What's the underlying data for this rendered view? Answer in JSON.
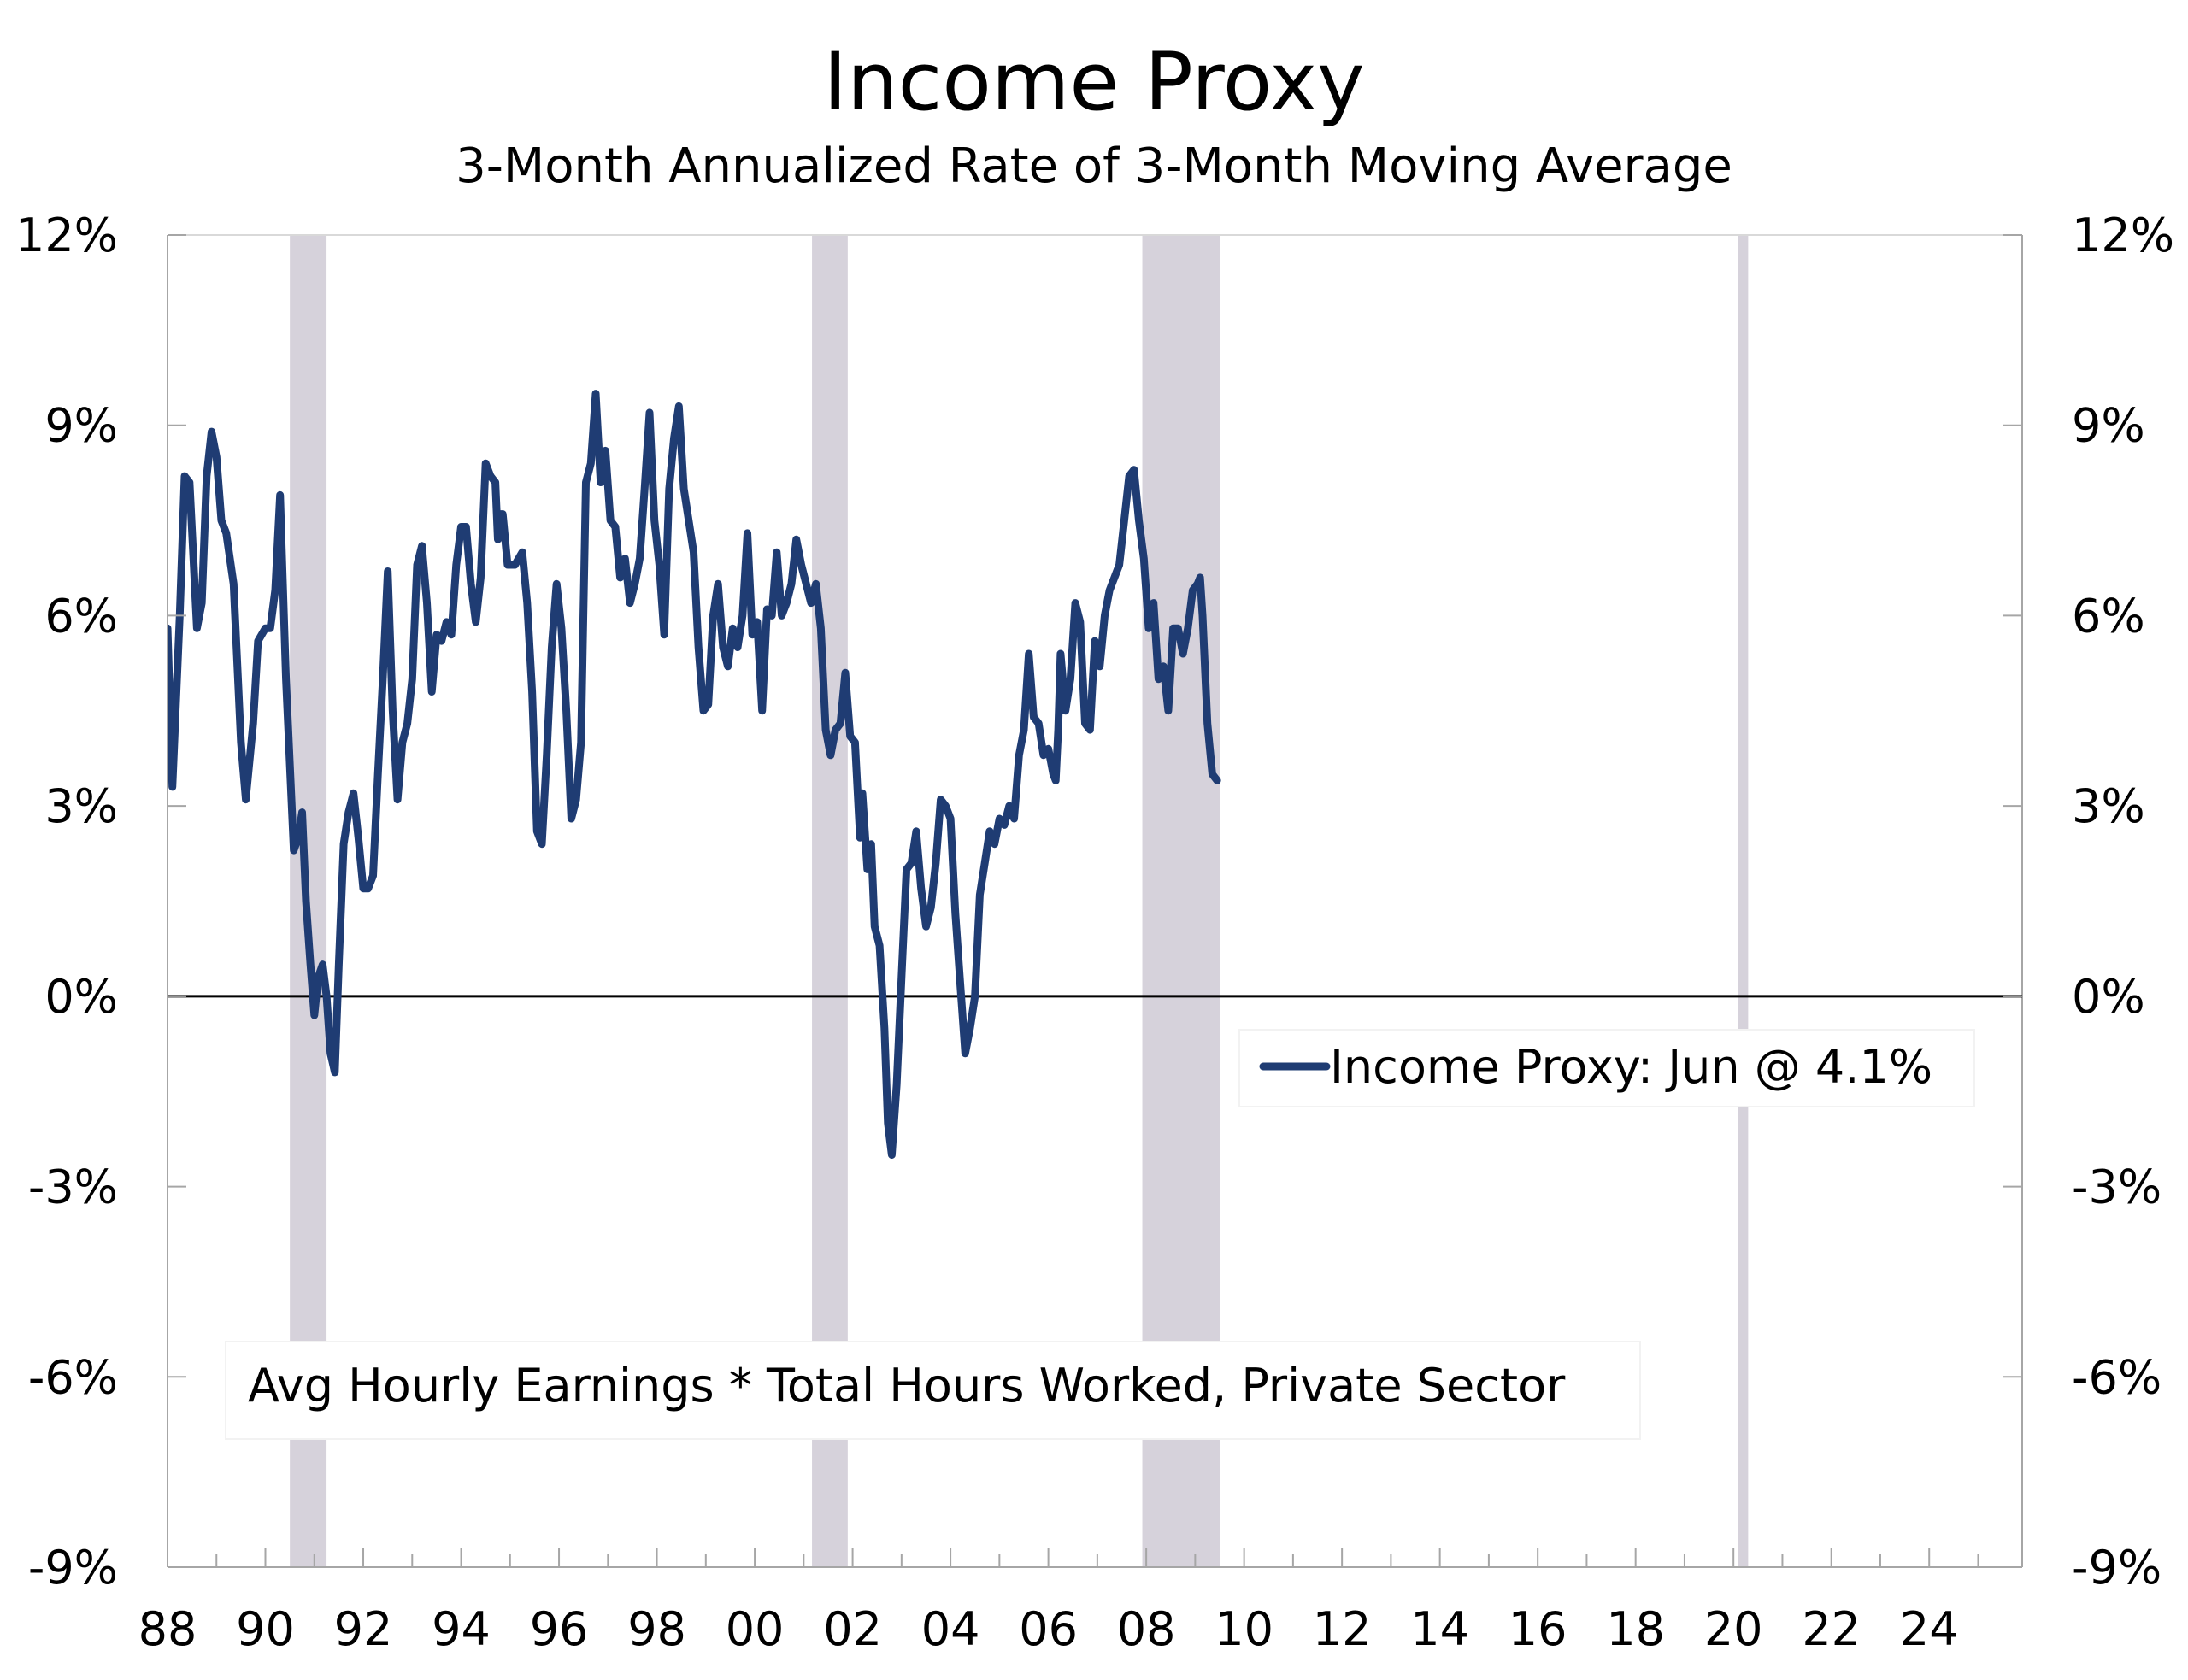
{
  "chart_data": {
    "type": "line",
    "title": "Income Proxy",
    "subtitle": "3-Month Annualized Rate of 3-Month Moving Average",
    "note": "Avg Hourly Earnings * Total Hours Worked, Private Sector",
    "xlim": [
      1988,
      2025.9
    ],
    "ylim": [
      -9,
      12
    ],
    "y_ticks": [
      {
        "value": 12,
        "label": "12%"
      },
      {
        "value": 9,
        "label": "9%"
      },
      {
        "value": 6,
        "label": "6%"
      },
      {
        "value": 3,
        "label": "3%"
      },
      {
        "value": 0,
        "label": "0%"
      },
      {
        "value": -3,
        "label": "-3%"
      },
      {
        "value": -6,
        "label": "-6%"
      },
      {
        "value": -9,
        "label": "-9%"
      }
    ],
    "x_ticks": [
      {
        "value": 1988,
        "label": "88"
      },
      {
        "value": 1990,
        "label": "90"
      },
      {
        "value": 1992,
        "label": "92"
      },
      {
        "value": 1994,
        "label": "94"
      },
      {
        "value": 1996,
        "label": "96"
      },
      {
        "value": 1998,
        "label": "98"
      },
      {
        "value": 2000,
        "label": "00"
      },
      {
        "value": 2002,
        "label": "02"
      },
      {
        "value": 2004,
        "label": "04"
      },
      {
        "value": 2006,
        "label": "06"
      },
      {
        "value": 2008,
        "label": "08"
      },
      {
        "value": 2010,
        "label": "10"
      },
      {
        "value": 2012,
        "label": "12"
      },
      {
        "value": 2014,
        "label": "14"
      },
      {
        "value": 2016,
        "label": "16"
      },
      {
        "value": 2018,
        "label": "18"
      },
      {
        "value": 2020,
        "label": "20"
      },
      {
        "value": 2022,
        "label": "22"
      },
      {
        "value": 2024,
        "label": "24"
      }
    ],
    "recessions": [
      [
        1990.5,
        1991.25
      ],
      [
        2001.17,
        2001.9
      ],
      [
        2007.92,
        2009.5
      ],
      [
        2020.1,
        2020.3
      ]
    ],
    "legend": {
      "position": "center-right",
      "entries": [
        {
          "label": "Income Proxy: Jun @ 4.1%",
          "color": "#1f3c73"
        }
      ]
    },
    "grid": false,
    "series": [
      {
        "name": "Income Proxy",
        "color": "#1f3c73",
        "points": [
          [
            1988.0,
            5.8
          ],
          [
            1988.1,
            3.3
          ],
          [
            1988.25,
            6.0
          ],
          [
            1988.35,
            8.2
          ],
          [
            1988.45,
            8.1
          ],
          [
            1988.6,
            5.8
          ],
          [
            1988.7,
            6.2
          ],
          [
            1988.8,
            8.2
          ],
          [
            1988.9,
            8.9
          ],
          [
            1989.0,
            8.5
          ],
          [
            1989.1,
            7.5
          ],
          [
            1989.2,
            7.3
          ],
          [
            1989.35,
            6.5
          ],
          [
            1989.5,
            4.0
          ],
          [
            1989.6,
            3.1
          ],
          [
            1989.75,
            4.3
          ],
          [
            1989.85,
            5.6
          ],
          [
            1990.0,
            5.8
          ],
          [
            1990.1,
            5.8
          ],
          [
            1990.2,
            6.4
          ],
          [
            1990.3,
            7.9
          ],
          [
            1990.42,
            5.0
          ],
          [
            1990.58,
            2.3
          ],
          [
            1990.67,
            2.5
          ],
          [
            1990.75,
            2.9
          ],
          [
            1990.83,
            1.5
          ],
          [
            1990.92,
            0.5
          ],
          [
            1991.0,
            -0.3
          ],
          [
            1991.08,
            0.3
          ],
          [
            1991.17,
            0.5
          ],
          [
            1991.25,
            0.0
          ],
          [
            1991.33,
            -0.9
          ],
          [
            1991.42,
            -1.2
          ],
          [
            1991.5,
            0.5
          ],
          [
            1991.6,
            2.4
          ],
          [
            1991.7,
            2.9
          ],
          [
            1991.8,
            3.2
          ],
          [
            1991.9,
            2.5
          ],
          [
            1992.0,
            1.7
          ],
          [
            1992.1,
            1.7
          ],
          [
            1992.2,
            1.9
          ],
          [
            1992.3,
            3.5
          ],
          [
            1992.4,
            5.0
          ],
          [
            1992.5,
            6.7
          ],
          [
            1992.6,
            4.5
          ],
          [
            1992.7,
            3.1
          ],
          [
            1992.8,
            4.0
          ],
          [
            1992.9,
            4.3
          ],
          [
            1993.0,
            5.0
          ],
          [
            1993.1,
            6.8
          ],
          [
            1993.2,
            7.1
          ],
          [
            1993.3,
            6.2
          ],
          [
            1993.4,
            4.8
          ],
          [
            1993.5,
            5.7
          ],
          [
            1993.6,
            5.6
          ],
          [
            1993.7,
            5.9
          ],
          [
            1993.8,
            5.7
          ],
          [
            1993.9,
            6.8
          ],
          [
            1994.0,
            7.4
          ],
          [
            1994.1,
            7.4
          ],
          [
            1994.2,
            6.5
          ],
          [
            1994.3,
            5.9
          ],
          [
            1994.4,
            6.6
          ],
          [
            1994.5,
            8.4
          ],
          [
            1994.6,
            8.2
          ],
          [
            1994.7,
            8.1
          ],
          [
            1994.75,
            7.2
          ],
          [
            1994.8,
            7.6
          ],
          [
            1994.85,
            7.6
          ],
          [
            1994.95,
            6.8
          ],
          [
            1995.1,
            6.8
          ],
          [
            1995.25,
            7.0
          ],
          [
            1995.35,
            6.2
          ],
          [
            1995.45,
            4.8
          ],
          [
            1995.55,
            2.6
          ],
          [
            1995.65,
            2.4
          ],
          [
            1995.75,
            3.8
          ],
          [
            1995.85,
            5.5
          ],
          [
            1995.95,
            6.5
          ],
          [
            1996.05,
            5.8
          ],
          [
            1996.15,
            4.5
          ],
          [
            1996.25,
            2.8
          ],
          [
            1996.35,
            3.1
          ],
          [
            1996.45,
            4.0
          ],
          [
            1996.55,
            8.1
          ],
          [
            1996.65,
            8.4
          ],
          [
            1996.75,
            9.5
          ],
          [
            1996.85,
            8.1
          ],
          [
            1996.95,
            8.6
          ],
          [
            1997.05,
            7.5
          ],
          [
            1997.15,
            7.4
          ],
          [
            1997.25,
            6.6
          ],
          [
            1997.35,
            6.9
          ],
          [
            1997.45,
            6.2
          ],
          [
            1997.55,
            6.5
          ],
          [
            1997.65,
            6.9
          ],
          [
            1997.75,
            8.0
          ],
          [
            1997.85,
            9.2
          ],
          [
            1997.95,
            7.5
          ],
          [
            1998.05,
            6.8
          ],
          [
            1998.15,
            5.7
          ],
          [
            1998.25,
            8.0
          ],
          [
            1998.35,
            8.8
          ],
          [
            1998.45,
            9.3
          ],
          [
            1998.55,
            8.0
          ],
          [
            1998.65,
            7.5
          ],
          [
            1998.75,
            7.0
          ],
          [
            1998.85,
            5.5
          ],
          [
            1998.95,
            4.5
          ],
          [
            1999.05,
            4.6
          ],
          [
            1999.15,
            6.0
          ],
          [
            1999.25,
            6.5
          ],
          [
            1999.35,
            5.5
          ],
          [
            1999.45,
            5.2
          ],
          [
            1999.55,
            5.8
          ],
          [
            1999.65,
            5.5
          ],
          [
            1999.75,
            6.0
          ],
          [
            1999.85,
            7.3
          ],
          [
            1999.95,
            5.7
          ],
          [
            2000.05,
            5.9
          ],
          [
            2000.15,
            4.5
          ],
          [
            2000.25,
            6.1
          ],
          [
            2000.35,
            6.0
          ],
          [
            2000.45,
            7.0
          ],
          [
            2000.55,
            6.0
          ],
          [
            2000.65,
            6.2
          ],
          [
            2000.75,
            6.5
          ],
          [
            2000.85,
            7.2
          ],
          [
            2000.95,
            6.8
          ],
          [
            2001.05,
            6.5
          ],
          [
            2001.15,
            6.2
          ],
          [
            2001.25,
            6.5
          ],
          [
            2001.35,
            5.8
          ],
          [
            2001.45,
            4.2
          ],
          [
            2001.55,
            3.8
          ],
          [
            2001.65,
            4.2
          ],
          [
            2001.75,
            4.3
          ],
          [
            2001.85,
            5.1
          ],
          [
            2001.95,
            4.1
          ],
          [
            2002.05,
            4.0
          ],
          [
            2002.15,
            2.5
          ],
          [
            2002.2,
            3.2
          ],
          [
            2002.3,
            2.0
          ],
          [
            2002.38,
            2.4
          ],
          [
            2002.45,
            1.1
          ],
          [
            2002.55,
            0.8
          ],
          [
            2002.65,
            -0.5
          ],
          [
            2002.72,
            -2.0
          ],
          [
            2002.8,
            -2.5
          ],
          [
            2002.9,
            -1.4
          ],
          [
            2003.0,
            0.3
          ],
          [
            2003.1,
            2.0
          ],
          [
            2003.2,
            2.1
          ],
          [
            2003.3,
            2.6
          ],
          [
            2003.4,
            1.7
          ],
          [
            2003.5,
            1.1
          ],
          [
            2003.6,
            1.4
          ],
          [
            2003.7,
            2.1
          ],
          [
            2003.8,
            3.1
          ],
          [
            2003.9,
            3.0
          ],
          [
            2004.0,
            2.8
          ],
          [
            2004.1,
            1.3
          ],
          [
            2004.2,
            0.2
          ],
          [
            2004.3,
            -0.9
          ],
          [
            2004.4,
            -0.5
          ],
          [
            2004.5,
            0.0
          ],
          [
            2004.6,
            1.6
          ],
          [
            2004.7,
            2.1
          ],
          [
            2004.8,
            2.6
          ],
          [
            2004.9,
            2.4
          ],
          [
            2005.0,
            2.8
          ],
          [
            2005.1,
            2.7
          ],
          [
            2005.2,
            3.0
          ],
          [
            2005.3,
            2.8
          ],
          [
            2005.4,
            3.8
          ],
          [
            2005.5,
            4.2
          ],
          [
            2005.6,
            5.4
          ],
          [
            2005.7,
            4.4
          ],
          [
            2005.8,
            4.3
          ],
          [
            2005.9,
            3.8
          ],
          [
            2006.0,
            3.9
          ],
          [
            2006.05,
            3.7
          ],
          [
            2006.1,
            3.5
          ],
          [
            2006.15,
            3.4
          ],
          [
            2006.2,
            4.2
          ],
          [
            2006.25,
            5.4
          ],
          [
            2006.35,
            4.5
          ],
          [
            2006.45,
            5.0
          ],
          [
            2006.55,
            6.2
          ],
          [
            2006.65,
            5.9
          ],
          [
            2006.75,
            4.3
          ],
          [
            2006.85,
            4.2
          ],
          [
            2006.95,
            5.6
          ],
          [
            2007.05,
            5.2
          ],
          [
            2007.15,
            6.0
          ],
          [
            2007.25,
            6.4
          ],
          [
            2007.35,
            6.6
          ],
          [
            2007.45,
            6.8
          ],
          [
            2007.55,
            7.5
          ],
          [
            2007.65,
            8.2
          ],
          [
            2007.75,
            8.3
          ],
          [
            2007.85,
            7.5
          ],
          [
            2007.95,
            6.9
          ],
          [
            2008.05,
            5.8
          ],
          [
            2008.15,
            6.2
          ],
          [
            2008.25,
            5.0
          ],
          [
            2008.35,
            5.2
          ],
          [
            2008.45,
            4.5
          ],
          [
            2008.55,
            5.8
          ],
          [
            2008.65,
            5.8
          ],
          [
            2008.75,
            5.4
          ],
          [
            2008.85,
            5.8
          ],
          [
            2008.95,
            6.4
          ],
          [
            2009.05,
            6.5
          ],
          [
            2009.1,
            6.6
          ],
          [
            2009.15,
            6.0
          ],
          [
            2009.25,
            4.3
          ],
          [
            2009.35,
            3.5
          ],
          [
            2009.45,
            3.4
          ]
        ]
      }
    ]
  }
}
